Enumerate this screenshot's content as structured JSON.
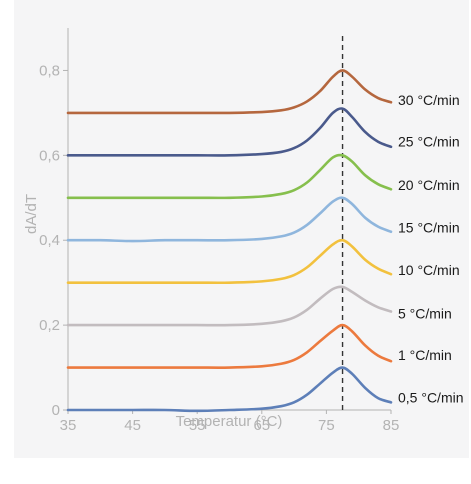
{
  "chart_data": {
    "type": "line",
    "title": "",
    "xlabel": "Temperatur (°C)",
    "ylabel": "dA/dT",
    "xlim": [
      35,
      85
    ],
    "ylim": [
      0,
      0.9
    ],
    "x_ticks": [
      35,
      45,
      55,
      65,
      75,
      85
    ],
    "x_tick_labels": [
      "35",
      "45",
      "55",
      "65",
      "75",
      "85"
    ],
    "y_ticks": [
      0,
      0.2,
      0.4,
      0.6,
      0.8
    ],
    "y_tick_labels": [
      "0",
      "0,2",
      "0,4",
      "0,6",
      "0,8"
    ],
    "grid": false,
    "legend": "inline labels at right end of each curve",
    "reference_line": {
      "x": 77.5,
      "style": "dashed",
      "color": "#333333"
    },
    "x": [
      35,
      40,
      45,
      50,
      55,
      60,
      65,
      68,
      70,
      72,
      74,
      76,
      77.5,
      79,
      81,
      83,
      85
    ],
    "series": [
      {
        "name": "30 °C/min",
        "color": "#b5673e",
        "values": [
          0.7,
          0.7,
          0.7,
          0.7,
          0.7,
          0.7,
          0.702,
          0.706,
          0.713,
          0.727,
          0.751,
          0.785,
          0.8,
          0.785,
          0.755,
          0.735,
          0.725
        ]
      },
      {
        "name": "25 °C/min",
        "color": "#4a5a8c",
        "values": [
          0.6,
          0.6,
          0.6,
          0.6,
          0.6,
          0.6,
          0.603,
          0.608,
          0.617,
          0.635,
          0.664,
          0.7,
          0.71,
          0.69,
          0.655,
          0.632,
          0.62
        ]
      },
      {
        "name": "20 °C/min",
        "color": "#86bf4d",
        "values": [
          0.5,
          0.5,
          0.5,
          0.5,
          0.5,
          0.5,
          0.503,
          0.509,
          0.518,
          0.536,
          0.565,
          0.595,
          0.6,
          0.585,
          0.553,
          0.532,
          0.52
        ]
      },
      {
        "name": "15 °C/min",
        "color": "#8fb6dd",
        "values": [
          0.4,
          0.4,
          0.398,
          0.4,
          0.4,
          0.4,
          0.403,
          0.409,
          0.418,
          0.436,
          0.463,
          0.491,
          0.5,
          0.485,
          0.453,
          0.432,
          0.42
        ]
      },
      {
        "name": "10 °C/min",
        "color": "#f2c13e",
        "values": [
          0.3,
          0.3,
          0.3,
          0.3,
          0.3,
          0.3,
          0.303,
          0.309,
          0.318,
          0.336,
          0.363,
          0.39,
          0.4,
          0.385,
          0.354,
          0.333,
          0.32
        ]
      },
      {
        "name": "5 °C/min",
        "color": "#c2bcbf",
        "values": [
          0.2,
          0.2,
          0.2,
          0.2,
          0.2,
          0.2,
          0.203,
          0.209,
          0.218,
          0.236,
          0.262,
          0.285,
          0.29,
          0.278,
          0.258,
          0.242,
          0.232
        ]
      },
      {
        "name": "1 °C/min",
        "color": "#ec7a3e",
        "values": [
          0.1,
          0.1,
          0.1,
          0.1,
          0.1,
          0.1,
          0.103,
          0.109,
          0.118,
          0.136,
          0.162,
          0.187,
          0.2,
          0.185,
          0.152,
          0.128,
          0.115
        ]
      },
      {
        "name": "0,5 °C/min",
        "color": "#5d7fb8",
        "values": [
          0.0,
          0.0,
          0.0,
          0.0,
          -0.002,
          0.0,
          0.003,
          0.009,
          0.018,
          0.036,
          0.062,
          0.088,
          0.1,
          0.085,
          0.052,
          0.028,
          0.018
        ]
      }
    ]
  }
}
